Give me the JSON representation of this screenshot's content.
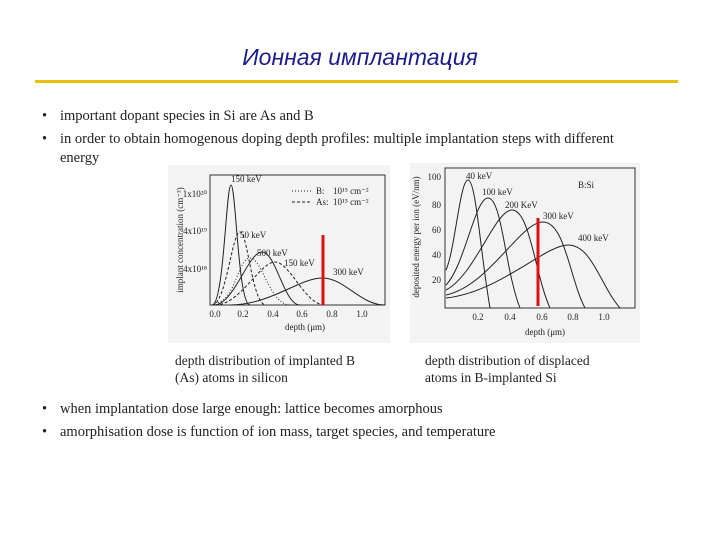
{
  "header": {
    "title": "Ионная имплантация"
  },
  "bullets_top": [
    "important dopant species in Si are As and B",
    "in order to obtain homogenous doping depth profiles: multiple implantation steps with different energy"
  ],
  "figures": [
    {
      "y_label": "implant concentration (cm⁻³)",
      "x_label": "depth (μm)",
      "y_ticks": [
        "1x10²⁰",
        "4x10¹⁹",
        "4x10¹⁸"
      ],
      "x_ticks": [
        "0.0",
        "0.2",
        "0.4",
        "0.6",
        "0.8",
        "1.0"
      ],
      "curve_labels": [
        "150 keV",
        "50 keV",
        "500 keV",
        "150 keV",
        "300 keV"
      ],
      "legend": [
        {
          "name": "B:",
          "dose": "10¹⁵ cm⁻²"
        },
        {
          "name": "As:",
          "dose": "10¹⁵ cm⁻²"
        }
      ],
      "caption": [
        "depth distribution of implanted B",
        "(As) atoms in silicon"
      ]
    },
    {
      "y_label": "deposited energy per ion (eV/nm)",
      "x_label": "depth (μm)",
      "y_ticks": [
        "100",
        "80",
        "60",
        "40",
        "20"
      ],
      "x_ticks": [
        "0.2",
        "0.4",
        "0.6",
        "0.8",
        "1.0"
      ],
      "curve_labels": [
        "40 keV",
        "100 keV",
        "200 KeV",
        "300 keV",
        "400 keV"
      ],
      "legend_text": "B:Si",
      "caption": [
        "depth distribution of displaced",
        "atoms in B-implanted Si"
      ]
    }
  ],
  "bullets_bottom": [
    "when implantation dose large enough: lattice becomes amorphous",
    "amorphisation dose is function of ion mass, target species, and temperature"
  ]
}
